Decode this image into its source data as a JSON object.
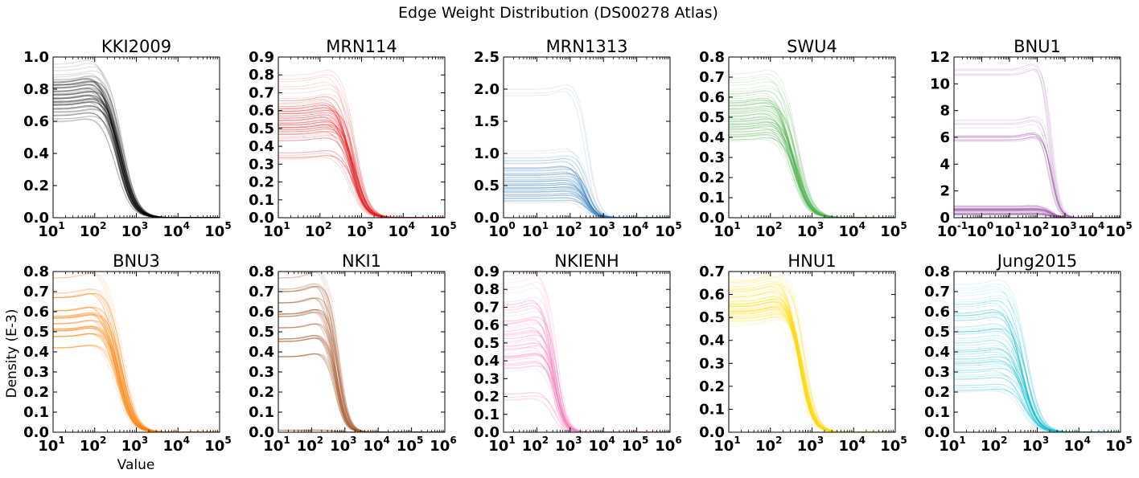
{
  "figure": {
    "title": "Edge Weight Distribution (DS00278 Atlas)",
    "xlabel": "Value",
    "ylabel": "Density (E-3)"
  },
  "chart_data": [
    {
      "type": "line",
      "title": "KKI2009",
      "color": "#000000",
      "xscale": "log",
      "xlim_exp": [
        1,
        5
      ],
      "xticks_exp": [
        1,
        2,
        3,
        4,
        5
      ],
      "ylim": [
        0,
        1.0
      ],
      "yticks": [
        "0.0",
        "0.2",
        "0.4",
        "0.6",
        "0.8",
        "1.0"
      ],
      "plateau_levels": [
        0.62,
        0.66,
        0.7,
        0.72,
        0.74,
        0.76,
        0.78,
        0.8,
        0.82,
        0.85,
        0.88,
        0.94
      ],
      "drop_center_exp": 2.6,
      "drop_width": 0.18
    },
    {
      "type": "line",
      "title": "MRN114",
      "color": "#e41a1c",
      "xscale": "log",
      "xlim_exp": [
        1,
        5
      ],
      "xticks_exp": [
        1,
        2,
        3,
        4,
        5
      ],
      "ylim": [
        0,
        0.9
      ],
      "yticks": [
        "0.0",
        "0.1",
        "0.2",
        "0.3",
        "0.4",
        "0.5",
        "0.6",
        "0.7",
        "0.8",
        "0.9"
      ],
      "plateau_levels": [
        0.35,
        0.45,
        0.48,
        0.5,
        0.52,
        0.54,
        0.56,
        0.58,
        0.6,
        0.62,
        0.66,
        0.72,
        0.78
      ],
      "drop_center_exp": 2.8,
      "drop_width": 0.16
    },
    {
      "type": "line",
      "title": "MRN1313",
      "color": "#377eb8",
      "xscale": "log",
      "xlim_exp": [
        0,
        5
      ],
      "xticks_exp": [
        0,
        1,
        2,
        3,
        4,
        5
      ],
      "ylim": [
        0,
        2.5
      ],
      "yticks": [
        "0.0",
        "0.5",
        "1.0",
        "1.5",
        "2.0",
        "2.5"
      ],
      "plateau_levels": [
        0.3,
        0.35,
        0.4,
        0.45,
        0.5,
        0.55,
        0.6,
        0.65,
        0.7,
        0.8,
        0.9,
        1.0,
        1.95
      ],
      "drop_center_exp": 2.5,
      "drop_width": 0.16
    },
    {
      "type": "line",
      "title": "SWU4",
      "color": "#4daf4a",
      "xscale": "log",
      "xlim_exp": [
        1,
        5
      ],
      "xticks_exp": [
        1,
        2,
        3,
        4,
        5
      ],
      "ylim": [
        0,
        0.8
      ],
      "yticks": [
        "0.0",
        "0.1",
        "0.2",
        "0.3",
        "0.4",
        "0.5",
        "0.6",
        "0.7",
        "0.8"
      ],
      "plateau_levels": [
        0.4,
        0.42,
        0.44,
        0.46,
        0.48,
        0.5,
        0.52,
        0.54,
        0.56,
        0.58,
        0.62,
        0.66,
        0.7
      ],
      "drop_center_exp": 2.6,
      "drop_width": 0.18
    },
    {
      "type": "line",
      "title": "BNU1",
      "color": "#984ea3",
      "xscale": "log",
      "xlim_exp": [
        -1,
        5
      ],
      "xticks_exp": [
        -1,
        0,
        1,
        2,
        3,
        4,
        5
      ],
      "ylim": [
        0,
        12
      ],
      "yticks": [
        "0",
        "2",
        "4",
        "6",
        "8",
        "10",
        "12"
      ],
      "plateau_levels": [
        0.5,
        0.55,
        0.6,
        0.45,
        6.0,
        7.0,
        10.8
      ],
      "drop_center_exp": 2.5,
      "drop_width": 0.15
    },
    {
      "type": "line",
      "title": "BNU3",
      "color": "#ff7f00",
      "xscale": "log",
      "xlim_exp": [
        1,
        5
      ],
      "xticks_exp": [
        1,
        2,
        3,
        4,
        5
      ],
      "ylim": [
        0,
        0.8
      ],
      "yticks": [
        "0.0",
        "0.1",
        "0.2",
        "0.3",
        "0.4",
        "0.5",
        "0.6",
        "0.7",
        "0.8"
      ],
      "plateau_levels": [
        0.44,
        0.48,
        0.5,
        0.52,
        0.54,
        0.56,
        0.58,
        0.6,
        0.65,
        0.7,
        0.76
      ],
      "drop_center_exp": 2.6,
      "drop_width": 0.17
    },
    {
      "type": "line",
      "title": "NKI1",
      "color": "#a65628",
      "xscale": "log",
      "xlim_exp": [
        1,
        6
      ],
      "xticks_exp": [
        1,
        2,
        3,
        4,
        5,
        6
      ],
      "ylim": [
        0,
        0.8
      ],
      "yticks": [
        "0.0",
        "0.1",
        "0.2",
        "0.3",
        "0.4",
        "0.5",
        "0.6",
        "0.7",
        "0.8"
      ],
      "plateau_levels": [
        0.03,
        0.38,
        0.44,
        0.48,
        0.52,
        0.56,
        0.6,
        0.64,
        0.68,
        0.72,
        0.76
      ],
      "drop_center_exp": 2.75,
      "drop_width": 0.15
    },
    {
      "type": "line",
      "title": "NKIENH",
      "color": "#f781bf",
      "xscale": "log",
      "xlim_exp": [
        1,
        6
      ],
      "xticks_exp": [
        1,
        2,
        3,
        4,
        5,
        6
      ],
      "ylim": [
        0,
        0.9
      ],
      "yticks": [
        "0.0",
        "0.1",
        "0.2",
        "0.3",
        "0.4",
        "0.5",
        "0.6",
        "0.7",
        "0.8",
        "0.9"
      ],
      "plateau_levels": [
        0.2,
        0.36,
        0.4,
        0.44,
        0.48,
        0.52,
        0.56,
        0.6,
        0.66,
        0.72,
        0.8,
        0.86
      ],
      "drop_center_exp": 2.55,
      "drop_width": 0.15
    },
    {
      "type": "line",
      "title": "HNU1",
      "color": "#ffd700",
      "xscale": "log",
      "xlim_exp": [
        1,
        5
      ],
      "xticks_exp": [
        1,
        2,
        3,
        4,
        5
      ],
      "ylim": [
        0,
        0.7
      ],
      "yticks": [
        "0.0",
        "0.1",
        "0.2",
        "0.3",
        "0.4",
        "0.5",
        "0.6",
        "0.7"
      ],
      "plateau_levels": [
        0.48,
        0.5,
        0.52,
        0.54,
        0.56,
        0.58,
        0.6,
        0.62,
        0.64,
        0.66
      ],
      "drop_center_exp": 2.75,
      "drop_width": 0.15
    },
    {
      "type": "line",
      "title": "Jung2015",
      "color": "#17becf",
      "xscale": "log",
      "xlim_exp": [
        1,
        5
      ],
      "xticks_exp": [
        1,
        2,
        3,
        4,
        5
      ],
      "ylim": [
        0,
        0.8
      ],
      "yticks": [
        "0.0",
        "0.1",
        "0.2",
        "0.3",
        "0.4",
        "0.5",
        "0.6",
        "0.7",
        "0.8"
      ],
      "plateau_levels": [
        0.22,
        0.28,
        0.32,
        0.36,
        0.4,
        0.44,
        0.48,
        0.52,
        0.56,
        0.6,
        0.64,
        0.68,
        0.72
      ],
      "drop_center_exp": 2.7,
      "drop_width": 0.17
    }
  ]
}
